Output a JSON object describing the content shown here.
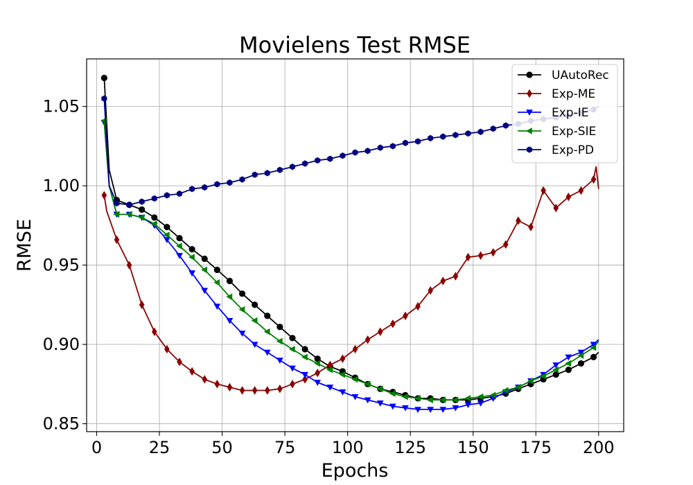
{
  "chart_data": {
    "type": "line",
    "title": "Movielens Test RMSE",
    "xlabel": "Epochs",
    "ylabel": "RMSE",
    "xlim": [
      -4,
      210
    ],
    "ylim": [
      0.845,
      1.08
    ],
    "xticks": [
      0,
      25,
      50,
      75,
      100,
      125,
      150,
      175,
      200
    ],
    "yticks": [
      0.85,
      0.9,
      0.95,
      1.0,
      1.05
    ],
    "xtick_labels": [
      "0",
      "25",
      "50",
      "75",
      "100",
      "125",
      "150",
      "175",
      "200"
    ],
    "ytick_labels": [
      "0.85",
      "0.90",
      "0.95",
      "1.00",
      "1.05"
    ],
    "grid": true,
    "legend_position": "top-right",
    "series": [
      {
        "name": "UAutoRec",
        "color": "#000000",
        "marker": "circle",
        "points": [
          [
            3,
            1.068
          ],
          [
            5,
            1.01
          ],
          [
            8,
            0.991
          ],
          [
            13,
            0.988
          ],
          [
            18,
            0.985
          ],
          [
            23,
            0.98
          ],
          [
            28,
            0.974
          ],
          [
            33,
            0.967
          ],
          [
            38,
            0.96
          ],
          [
            43,
            0.954
          ],
          [
            48,
            0.947
          ],
          [
            53,
            0.94
          ],
          [
            58,
            0.932
          ],
          [
            63,
            0.925
          ],
          [
            68,
            0.918
          ],
          [
            73,
            0.911
          ],
          [
            78,
            0.904
          ],
          [
            83,
            0.897
          ],
          [
            88,
            0.891
          ],
          [
            93,
            0.886
          ],
          [
            98,
            0.883
          ],
          [
            103,
            0.879
          ],
          [
            108,
            0.875
          ],
          [
            113,
            0.872
          ],
          [
            118,
            0.87
          ],
          [
            123,
            0.868
          ],
          [
            128,
            0.866
          ],
          [
            133,
            0.866
          ],
          [
            138,
            0.865
          ],
          [
            143,
            0.865
          ],
          [
            148,
            0.865
          ],
          [
            153,
            0.866
          ],
          [
            158,
            0.867
          ],
          [
            163,
            0.869
          ],
          [
            168,
            0.872
          ],
          [
            173,
            0.875
          ],
          [
            178,
            0.878
          ],
          [
            183,
            0.881
          ],
          [
            188,
            0.884
          ],
          [
            193,
            0.888
          ],
          [
            198,
            0.892
          ],
          [
            200,
            0.895
          ]
        ]
      },
      {
        "name": "Exp-ME",
        "color": "#8b0000",
        "marker": "diamond",
        "points": [
          [
            3,
            0.994
          ],
          [
            4,
            0.984
          ],
          [
            8,
            0.966
          ],
          [
            13,
            0.95
          ],
          [
            18,
            0.925
          ],
          [
            23,
            0.908
          ],
          [
            28,
            0.897
          ],
          [
            33,
            0.889
          ],
          [
            38,
            0.883
          ],
          [
            43,
            0.878
          ],
          [
            48,
            0.875
          ],
          [
            53,
            0.873
          ],
          [
            58,
            0.871
          ],
          [
            63,
            0.871
          ],
          [
            68,
            0.871
          ],
          [
            73,
            0.872
          ],
          [
            78,
            0.875
          ],
          [
            83,
            0.878
          ],
          [
            88,
            0.882
          ],
          [
            93,
            0.887
          ],
          [
            98,
            0.891
          ],
          [
            103,
            0.897
          ],
          [
            108,
            0.903
          ],
          [
            113,
            0.908
          ],
          [
            118,
            0.913
          ],
          [
            123,
            0.918
          ],
          [
            128,
            0.924
          ],
          [
            133,
            0.934
          ],
          [
            138,
            0.94
          ],
          [
            143,
            0.943
          ],
          [
            148,
            0.955
          ],
          [
            153,
            0.956
          ],
          [
            158,
            0.958
          ],
          [
            163,
            0.963
          ],
          [
            168,
            0.978
          ],
          [
            173,
            0.974
          ],
          [
            178,
            0.997
          ],
          [
            183,
            0.986
          ],
          [
            188,
            0.993
          ],
          [
            193,
            0.997
          ],
          [
            198,
            1.004
          ],
          [
            199,
            1.012
          ],
          [
            200,
            0.998
          ]
        ]
      },
      {
        "name": "Exp-IE",
        "color": "#0000ff",
        "marker": "triangle-down",
        "points": [
          [
            3,
            1.04
          ],
          [
            5,
            1.0
          ],
          [
            8,
            0.982
          ],
          [
            13,
            0.982
          ],
          [
            18,
            0.98
          ],
          [
            23,
            0.975
          ],
          [
            28,
            0.966
          ],
          [
            33,
            0.956
          ],
          [
            38,
            0.945
          ],
          [
            43,
            0.934
          ],
          [
            48,
            0.924
          ],
          [
            53,
            0.915
          ],
          [
            58,
            0.907
          ],
          [
            63,
            0.9
          ],
          [
            68,
            0.895
          ],
          [
            73,
            0.89
          ],
          [
            78,
            0.885
          ],
          [
            83,
            0.881
          ],
          [
            88,
            0.876
          ],
          [
            93,
            0.873
          ],
          [
            98,
            0.87
          ],
          [
            103,
            0.867
          ],
          [
            108,
            0.865
          ],
          [
            113,
            0.863
          ],
          [
            118,
            0.861
          ],
          [
            123,
            0.86
          ],
          [
            128,
            0.859
          ],
          [
            133,
            0.859
          ],
          [
            138,
            0.859
          ],
          [
            143,
            0.86
          ],
          [
            148,
            0.862
          ],
          [
            153,
            0.863
          ],
          [
            158,
            0.866
          ],
          [
            163,
            0.87
          ],
          [
            168,
            0.873
          ],
          [
            173,
            0.877
          ],
          [
            178,
            0.881
          ],
          [
            183,
            0.887
          ],
          [
            188,
            0.892
          ],
          [
            193,
            0.895
          ],
          [
            198,
            0.9
          ],
          [
            200,
            0.903
          ]
        ]
      },
      {
        "name": "Exp-SIE",
        "color": "#008000",
        "marker": "triangle-left",
        "points": [
          [
            3,
            1.041
          ],
          [
            5,
            1.0
          ],
          [
            8,
            0.982
          ],
          [
            13,
            0.982
          ],
          [
            18,
            0.98
          ],
          [
            23,
            0.976
          ],
          [
            28,
            0.969
          ],
          [
            33,
            0.962
          ],
          [
            38,
            0.955
          ],
          [
            43,
            0.947
          ],
          [
            48,
            0.939
          ],
          [
            53,
            0.93
          ],
          [
            58,
            0.922
          ],
          [
            63,
            0.915
          ],
          [
            68,
            0.908
          ],
          [
            73,
            0.902
          ],
          [
            78,
            0.897
          ],
          [
            83,
            0.892
          ],
          [
            88,
            0.888
          ],
          [
            93,
            0.884
          ],
          [
            98,
            0.881
          ],
          [
            103,
            0.878
          ],
          [
            108,
            0.875
          ],
          [
            113,
            0.872
          ],
          [
            118,
            0.869
          ],
          [
            123,
            0.867
          ],
          [
            128,
            0.866
          ],
          [
            133,
            0.865
          ],
          [
            138,
            0.865
          ],
          [
            143,
            0.865
          ],
          [
            148,
            0.866
          ],
          [
            153,
            0.867
          ],
          [
            158,
            0.868
          ],
          [
            163,
            0.871
          ],
          [
            168,
            0.873
          ],
          [
            173,
            0.877
          ],
          [
            178,
            0.88
          ],
          [
            183,
            0.884
          ],
          [
            188,
            0.888
          ],
          [
            193,
            0.893
          ],
          [
            198,
            0.898
          ],
          [
            200,
            0.902
          ]
        ]
      },
      {
        "name": "Exp-PD",
        "color": "#000080",
        "marker": "hexagon",
        "points": [
          [
            3,
            1.055
          ],
          [
            5,
            1.0
          ],
          [
            8,
            0.989
          ],
          [
            13,
            0.988
          ],
          [
            18,
            0.99
          ],
          [
            23,
            0.992
          ],
          [
            28,
            0.994
          ],
          [
            33,
            0.995
          ],
          [
            38,
            0.998
          ],
          [
            43,
            0.999
          ],
          [
            48,
            1.001
          ],
          [
            53,
            1.002
          ],
          [
            58,
            1.004
          ],
          [
            63,
            1.007
          ],
          [
            68,
            1.008
          ],
          [
            73,
            1.01
          ],
          [
            78,
            1.012
          ],
          [
            83,
            1.014
          ],
          [
            88,
            1.016
          ],
          [
            93,
            1.017
          ],
          [
            98,
            1.019
          ],
          [
            103,
            1.021
          ],
          [
            108,
            1.022
          ],
          [
            113,
            1.024
          ],
          [
            118,
            1.025
          ],
          [
            123,
            1.027
          ],
          [
            128,
            1.028
          ],
          [
            133,
            1.03
          ],
          [
            138,
            1.031
          ],
          [
            143,
            1.032
          ],
          [
            148,
            1.033
          ],
          [
            153,
            1.034
          ],
          [
            158,
            1.036
          ],
          [
            163,
            1.038
          ],
          [
            168,
            1.039
          ],
          [
            173,
            1.041
          ],
          [
            178,
            1.042
          ],
          [
            183,
            1.043
          ],
          [
            188,
            1.044
          ],
          [
            193,
            1.046
          ],
          [
            198,
            1.048
          ],
          [
            200,
            1.05
          ]
        ]
      }
    ]
  }
}
